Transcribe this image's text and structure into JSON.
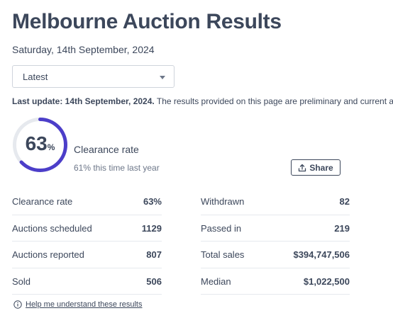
{
  "header": {
    "title": "Melbourne Auction Results",
    "date": "Saturday, 14th September, 2024"
  },
  "filter": {
    "selected": "Latest"
  },
  "update": {
    "bold": "Last update: 14th September, 2024.",
    "text": " The results provided on this page are preliminary and current a"
  },
  "gauge": {
    "value": "63",
    "unit": "%",
    "fraction": 0.63,
    "track_color": "#e6e9ee",
    "fill_color": "#4c3ec9"
  },
  "clearance": {
    "label": "Clearance rate",
    "last_year": "61% this time last year"
  },
  "share": {
    "label": "Share"
  },
  "stats_left": [
    {
      "label": "Clearance rate",
      "value": "63%"
    },
    {
      "label": "Auctions scheduled",
      "value": "1129"
    },
    {
      "label": "Auctions reported",
      "value": "807"
    },
    {
      "label": "Sold",
      "value": "506"
    }
  ],
  "stats_right": [
    {
      "label": "Withdrawn",
      "value": "82"
    },
    {
      "label": "Passed in",
      "value": "219"
    },
    {
      "label": "Total sales",
      "value": "$394,747,506"
    },
    {
      "label": "Median",
      "value": "$1,022,500"
    }
  ],
  "help": {
    "label": "Help me understand these results"
  }
}
